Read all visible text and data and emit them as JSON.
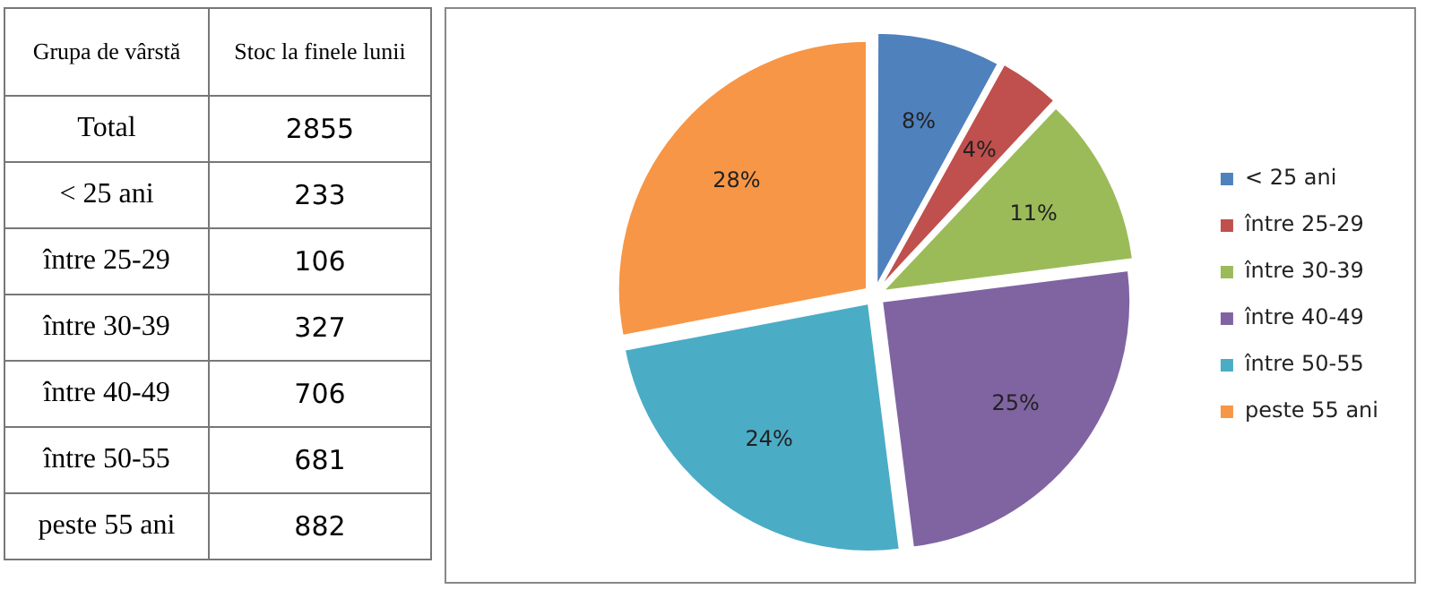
{
  "chart_data": {
    "type": "pie",
    "categories": [
      "< 25 ani",
      "între 25-29",
      "între 30-39",
      "între 40-49",
      "între 50-55",
      "peste 55 ani"
    ],
    "values": [
      8,
      4,
      11,
      25,
      24,
      28
    ],
    "value_labels": [
      "8%",
      "4%",
      "11%",
      "25%",
      "24%",
      "28%"
    ],
    "colors": [
      "#4f81bd",
      "#c0504d",
      "#9bbb59",
      "#8064a2",
      "#4bacc6",
      "#f79646"
    ],
    "annotations": [
      "Grupa de vârstă",
      "Stoc la finele lunii",
      "Total",
      "2855",
      "233",
      "106",
      "327",
      "706",
      "681",
      "882"
    ],
    "legend": "right"
  }
}
